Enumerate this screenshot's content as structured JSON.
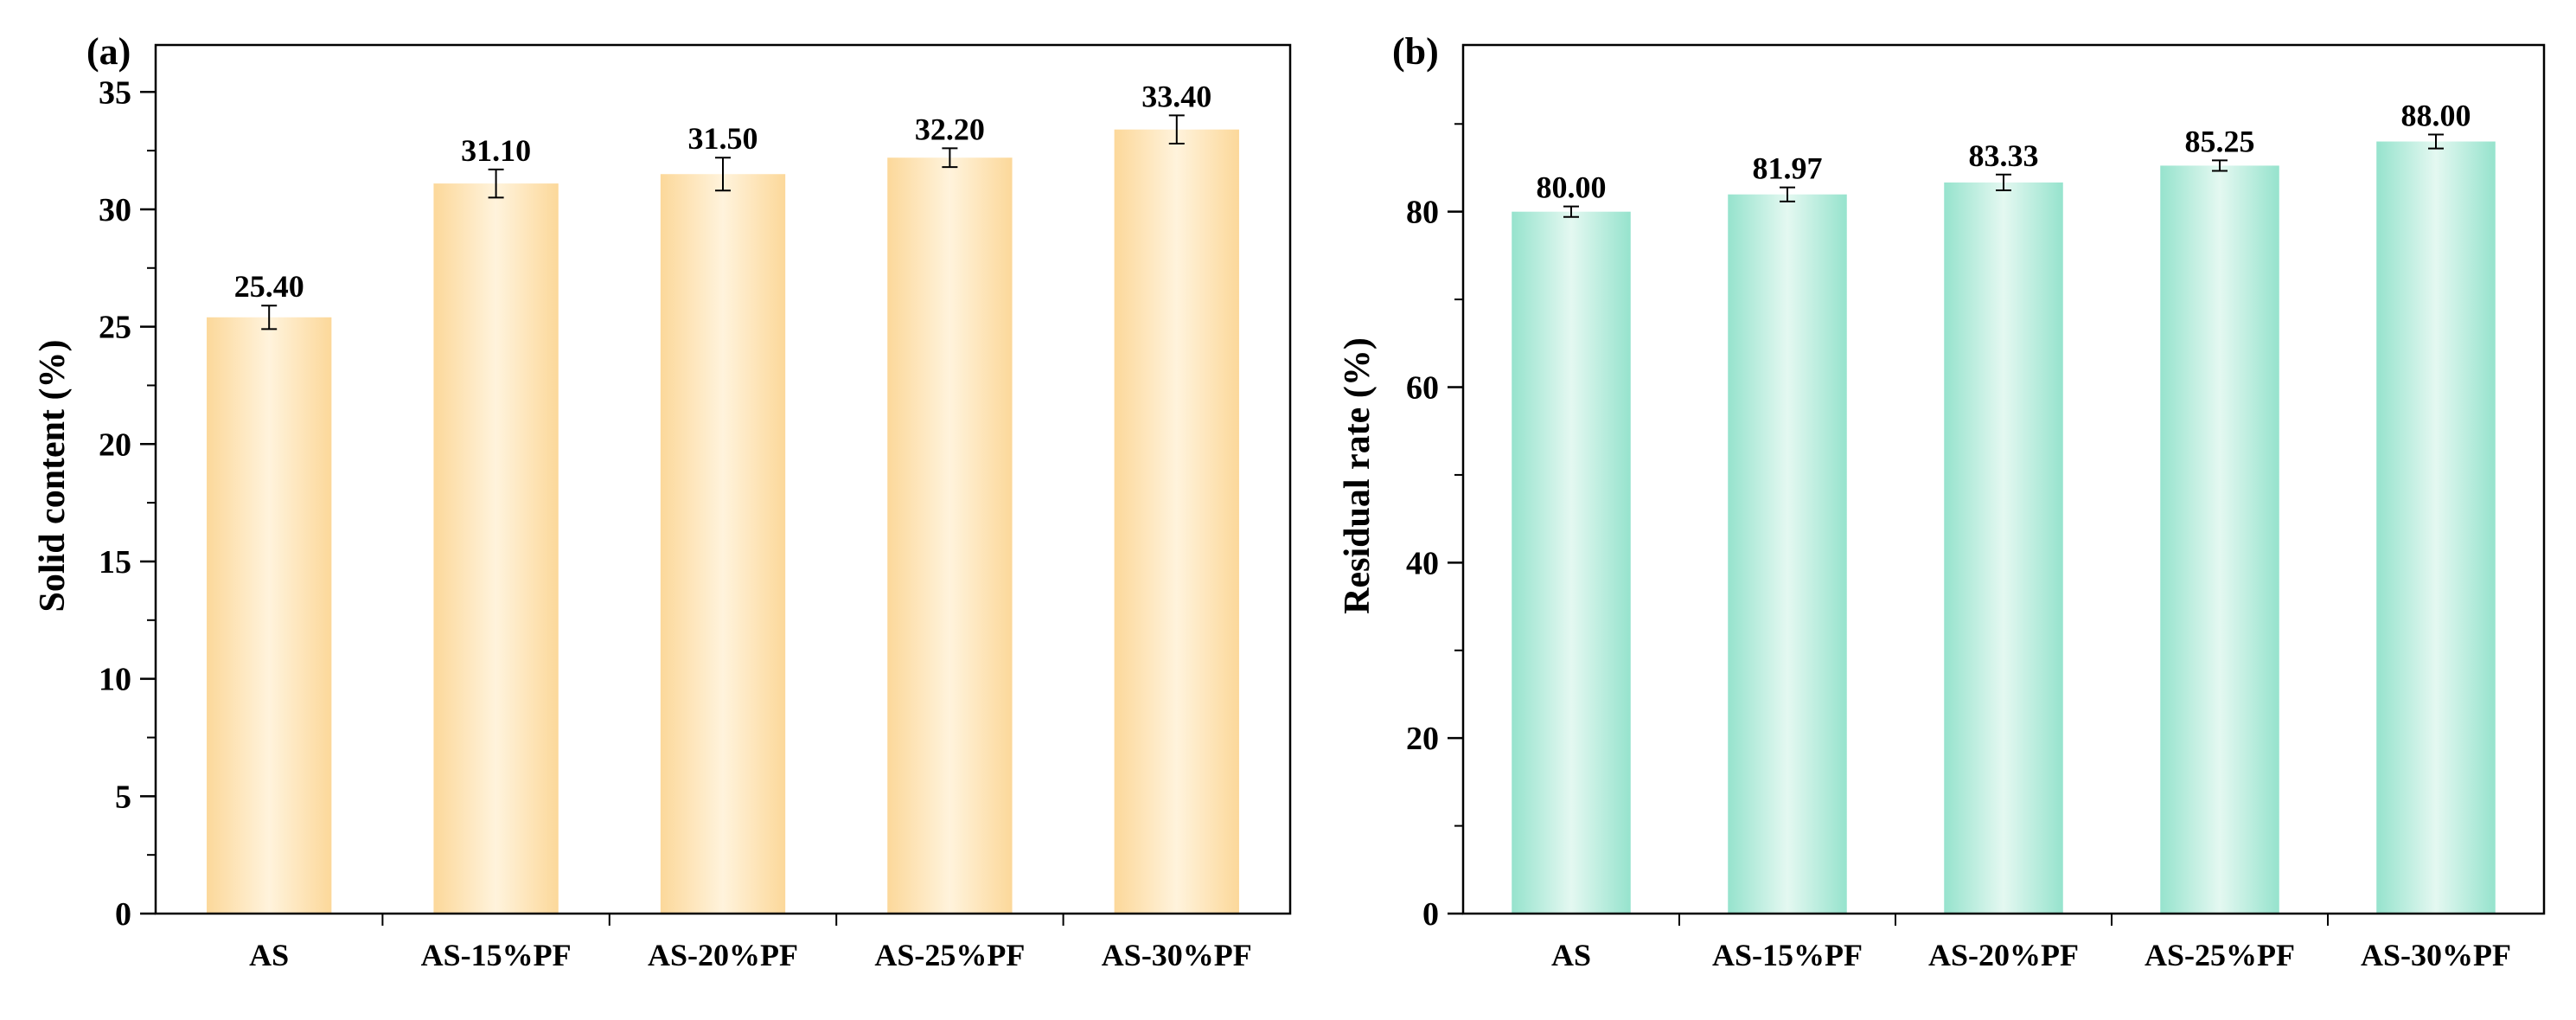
{
  "chart_data": [
    {
      "type": "bar",
      "panel_label": "(a)",
      "title": "",
      "xlabel": "",
      "ylabel": "Solid content (%)",
      "categories": [
        "AS",
        "AS-15%PF",
        "AS-20%PF",
        "AS-25%PF",
        "AS-30%PF"
      ],
      "values": [
        25.4,
        31.1,
        31.5,
        32.2,
        33.4
      ],
      "value_labels": [
        "25.40",
        "31.10",
        "31.50",
        "32.20",
        "33.40"
      ],
      "errors": [
        0.5,
        0.6,
        0.7,
        0.4,
        0.6
      ],
      "ylim": [
        0,
        37
      ],
      "yticks": [
        0,
        5,
        10,
        15,
        20,
        25,
        30,
        35
      ],
      "ytick_labels": [
        "0",
        "5",
        "10",
        "15",
        "20",
        "25",
        "30",
        "35"
      ],
      "ytick_minor": 2.5,
      "bar_color_edge": "#fcd89a",
      "bar_color_center": "#fff3dc",
      "grid": false
    },
    {
      "type": "bar",
      "panel_label": "(b)",
      "title": "",
      "xlabel": "",
      "ylabel": "Residual rate (%)",
      "categories": [
        "AS",
        "AS-15%PF",
        "AS-20%PF",
        "AS-25%PF",
        "AS-30%PF"
      ],
      "values": [
        80.0,
        81.97,
        83.33,
        85.25,
        88.0
      ],
      "value_labels": [
        "80.00",
        "81.97",
        "83.33",
        "85.25",
        "88.00"
      ],
      "errors": [
        0.6,
        0.8,
        0.9,
        0.6,
        0.8
      ],
      "ylim": [
        0,
        99
      ],
      "yticks": [
        0,
        20,
        40,
        60,
        80
      ],
      "ytick_labels": [
        "0",
        "20",
        "40",
        "60",
        "80"
      ],
      "ytick_minor": 10,
      "bar_color_edge": "#96e3cd",
      "bar_color_center": "#e4f8f1",
      "grid": false
    }
  ]
}
